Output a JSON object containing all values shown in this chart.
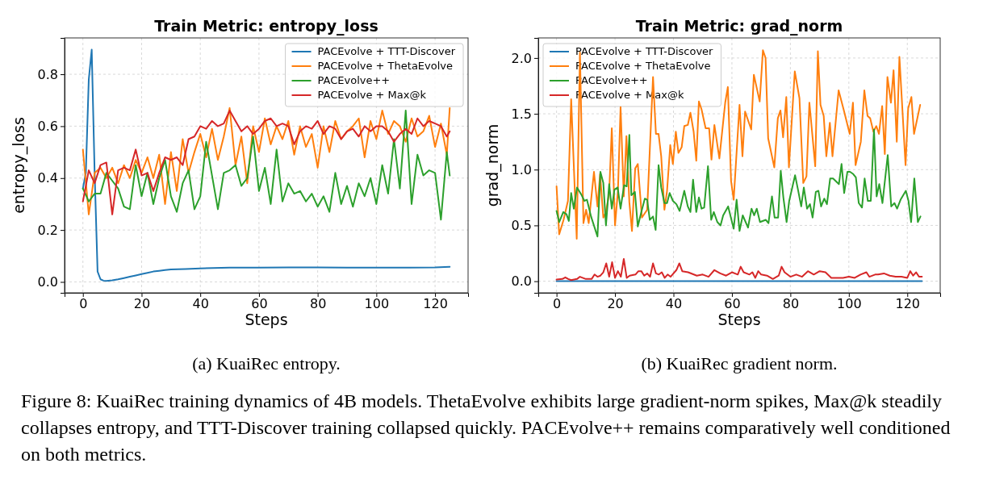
{
  "chart_data": [
    {
      "type": "line",
      "title": "Train Metric: entropy_loss",
      "xlabel": "Steps",
      "ylabel": "entropy_loss",
      "xlim": [
        -6.25,
        131.25
      ],
      "xticks": [
        0,
        20,
        40,
        60,
        80,
        100,
        120
      ],
      "ylim": [
        -0.042,
        0.94
      ],
      "yticks": [
        {
          "value": 0,
          "label": "0.0"
        },
        0.2,
        0.4,
        0.6,
        0.8
      ],
      "grid": true,
      "legend": "top right",
      "annotations": [
        "(a) KuaiRec entropy."
      ],
      "series": [
        {
          "name": "PACEvolve + TTT-Discover",
          "color": "#1f77b4",
          "x": [
            0,
            1,
            2,
            3,
            4,
            5,
            6,
            7,
            8,
            10,
            12,
            14,
            16,
            18,
            20,
            22,
            24,
            26,
            28,
            30,
            35,
            40,
            50,
            60,
            70,
            80,
            90,
            100,
            110,
            120,
            125
          ],
          "values": [
            0.36,
            0.42,
            0.78,
            0.895,
            0.42,
            0.04,
            0.01,
            0.005,
            0.004,
            0.006,
            0.01,
            0.015,
            0.02,
            0.025,
            0.03,
            0.035,
            0.04,
            0.043,
            0.046,
            0.048,
            0.05,
            0.052,
            0.055,
            0.055,
            0.056,
            0.056,
            0.055,
            0.055,
            0.055,
            0.056,
            0.058
          ]
        },
        {
          "name": "PACEvolve + ThetaEvolve",
          "color": "#ff7f0e",
          "x": [
            0,
            2,
            4,
            6,
            8,
            10,
            12,
            14,
            16,
            18,
            20,
            22,
            24,
            26,
            28,
            30,
            32,
            34,
            36,
            38,
            40,
            42,
            44,
            46,
            48,
            50,
            52,
            54,
            56,
            58,
            60,
            62,
            64,
            66,
            68,
            70,
            72,
            74,
            76,
            78,
            80,
            82,
            84,
            86,
            88,
            90,
            92,
            94,
            96,
            98,
            100,
            102,
            104,
            106,
            108,
            110,
            112,
            114,
            116,
            118,
            120,
            122,
            124,
            125
          ],
          "values": [
            0.51,
            0.26,
            0.42,
            0.44,
            0.4,
            0.44,
            0.38,
            0.45,
            0.4,
            0.47,
            0.42,
            0.48,
            0.4,
            0.49,
            0.3,
            0.5,
            0.35,
            0.55,
            0.42,
            0.5,
            0.57,
            0.48,
            0.59,
            0.47,
            0.56,
            0.67,
            0.45,
            0.56,
            0.38,
            0.6,
            0.5,
            0.63,
            0.53,
            0.6,
            0.55,
            0.62,
            0.49,
            0.6,
            0.52,
            0.57,
            0.44,
            0.6,
            0.5,
            0.62,
            0.55,
            0.58,
            0.6,
            0.63,
            0.48,
            0.62,
            0.55,
            0.66,
            0.57,
            0.62,
            0.6,
            0.54,
            0.63,
            0.56,
            0.58,
            0.64,
            0.52,
            0.61,
            0.49,
            0.67
          ]
        },
        {
          "name": "PACEvolve++",
          "color": "#2ca02c",
          "x": [
            0,
            2,
            4,
            6,
            8,
            10,
            12,
            14,
            16,
            18,
            20,
            22,
            24,
            26,
            28,
            30,
            32,
            34,
            36,
            38,
            40,
            42,
            44,
            46,
            48,
            50,
            52,
            54,
            56,
            58,
            60,
            62,
            64,
            66,
            68,
            70,
            72,
            74,
            76,
            78,
            80,
            82,
            84,
            86,
            88,
            90,
            92,
            94,
            96,
            98,
            100,
            102,
            104,
            106,
            108,
            110,
            112,
            114,
            116,
            118,
            120,
            122,
            124,
            125
          ],
          "values": [
            0.36,
            0.31,
            0.34,
            0.34,
            0.42,
            0.39,
            0.36,
            0.29,
            0.28,
            0.45,
            0.33,
            0.42,
            0.3,
            0.4,
            0.47,
            0.33,
            0.27,
            0.38,
            0.43,
            0.28,
            0.33,
            0.54,
            0.41,
            0.28,
            0.42,
            0.43,
            0.45,
            0.37,
            0.4,
            0.56,
            0.35,
            0.44,
            0.3,
            0.51,
            0.31,
            0.38,
            0.34,
            0.35,
            0.31,
            0.34,
            0.29,
            0.33,
            0.27,
            0.42,
            0.3,
            0.37,
            0.29,
            0.38,
            0.33,
            0.4,
            0.3,
            0.45,
            0.34,
            0.55,
            0.36,
            0.66,
            0.3,
            0.49,
            0.41,
            0.43,
            0.42,
            0.24,
            0.5,
            0.41
          ]
        },
        {
          "name": "PACEvolve + Max@k",
          "color": "#d62728",
          "x": [
            0,
            2,
            4,
            6,
            8,
            10,
            12,
            14,
            16,
            18,
            20,
            22,
            24,
            26,
            28,
            30,
            32,
            34,
            36,
            38,
            40,
            42,
            44,
            46,
            48,
            50,
            52,
            54,
            56,
            58,
            60,
            62,
            64,
            66,
            68,
            70,
            72,
            74,
            76,
            78,
            80,
            82,
            84,
            86,
            88,
            90,
            92,
            94,
            96,
            98,
            100,
            102,
            104,
            106,
            108,
            110,
            112,
            114,
            116,
            118,
            120,
            122,
            124,
            125
          ],
          "values": [
            0.31,
            0.43,
            0.38,
            0.45,
            0.46,
            0.26,
            0.43,
            0.44,
            0.43,
            0.51,
            0.41,
            0.42,
            0.35,
            0.42,
            0.48,
            0.47,
            0.48,
            0.45,
            0.55,
            0.56,
            0.6,
            0.59,
            0.62,
            0.6,
            0.61,
            0.66,
            0.62,
            0.58,
            0.6,
            0.57,
            0.59,
            0.62,
            0.63,
            0.6,
            0.61,
            0.6,
            0.53,
            0.58,
            0.6,
            0.59,
            0.62,
            0.57,
            0.6,
            0.59,
            0.55,
            0.58,
            0.59,
            0.56,
            0.6,
            0.58,
            0.6,
            0.6,
            0.58,
            0.54,
            0.57,
            0.59,
            0.57,
            0.63,
            0.6,
            0.62,
            0.61,
            0.6,
            0.56,
            0.58
          ]
        }
      ]
    },
    {
      "type": "line",
      "title": "Train Metric: grad_norm",
      "xlabel": "Steps",
      "ylabel": "grad_norm",
      "xlim": [
        -6.25,
        131.25
      ],
      "xticks": [
        0,
        20,
        40,
        60,
        80,
        100,
        120
      ],
      "ylim": [
        -0.104,
        2.18
      ],
      "yticks": [
        {
          "value": 0,
          "label": "0.0"
        },
        0.5,
        {
          "value": 1,
          "label": "1.0"
        },
        1.5,
        {
          "value": 2,
          "label": "2.0"
        }
      ],
      "grid": true,
      "legend": "top left",
      "annotations": [
        "(b) KuaiRec gradient norm.",
        "Figure 8: KuaiRec training dynamics of 4B models. ThetaEvolve exhibits large gradient-norm spikes, Max@k steadily collapses entropy, and TTT-Discover training collapsed quickly. PACEvolve++ remains comparatively well conditioned on both metrics."
      ],
      "series": [
        {
          "name": "PACEvolve + TTT-Discover",
          "color": "#1f77b4",
          "x": [
            0,
            125
          ],
          "values": [
            0,
            0
          ]
        },
        {
          "name": "PACEvolve + ThetaEvolve",
          "color": "#ff7f0e",
          "x": [
            0,
            0.9,
            2.4,
            3.9,
            5,
            6.9,
            8,
            9.2,
            10.1,
            11,
            12.8,
            14,
            14.9,
            16,
            16.9,
            18,
            18.9,
            20,
            21,
            21.9,
            23,
            23.9,
            24.9,
            25.8,
            26.9,
            27.8,
            29.2,
            31,
            33,
            34,
            34.9,
            35.8,
            36.9,
            37.8,
            38.9,
            39.8,
            40.8,
            41.7,
            42.8,
            43.7,
            44.9,
            45.8,
            46.9,
            47.8,
            48.7,
            49.6,
            51,
            52.2,
            53,
            54,
            55.7,
            57.7,
            58.6,
            59.7,
            60.6,
            62.6,
            63.6,
            64.5,
            66.6,
            67.5,
            69.5,
            70.6,
            71.5,
            72.4,
            74.5,
            75.7,
            76.6,
            77.5,
            78.6,
            79.5,
            81.5,
            83.1,
            84.4,
            85.5,
            86.5,
            88.5,
            89.4,
            90.3,
            91.4,
            92.3,
            93.5,
            94.4,
            96.5,
            98.3,
            100.3,
            101.4,
            102.3,
            104.1,
            105.3,
            106.4,
            107.3,
            108.4,
            109.4,
            110.3,
            111.4,
            112.3,
            113.2,
            114.4,
            115.3,
            116.4,
            117.3,
            119.4,
            120.3,
            121.4,
            122.3,
            124.4
          ],
          "values": [
            0.85,
            0.42,
            0.55,
            0.72,
            1.63,
            0.38,
            2.05,
            0.52,
            0.64,
            0.52,
            0.98,
            0.67,
            0.96,
            0.57,
            0.62,
            0.79,
            1.37,
            0.5,
            0.81,
            1.56,
            0.76,
            1.3,
            0.71,
            0.45,
            1.01,
            1.05,
            0.57,
            0.64,
            1.83,
            1.32,
            1.32,
            1.12,
            0.64,
            0.81,
            1.22,
            1.05,
            1.34,
            1.15,
            1.2,
            1.39,
            1.4,
            1.51,
            1.34,
            1.08,
            1.61,
            1.54,
            1.37,
            1.37,
            1.09,
            1.4,
            1.1,
            1.6,
            1.74,
            0.9,
            0.73,
            1.58,
            1.12,
            1.52,
            1.36,
            1.85,
            1.61,
            2.07,
            2.0,
            1.28,
            1.02,
            1.46,
            1.53,
            1.29,
            1.65,
            1.02,
            1.88,
            1.64,
            0.88,
            0.94,
            1.6,
            1.03,
            2.06,
            1.58,
            1.48,
            1.12,
            1.42,
            1.12,
            1.71,
            1.53,
            1.32,
            1.6,
            1.04,
            1.25,
            1.71,
            1.48,
            1.46,
            1.34,
            1.39,
            1.32,
            1.57,
            1.14,
            1.83,
            1.6,
            1.89,
            1.25,
            2.01,
            1.04,
            1.55,
            1.65,
            1.32,
            1.58
          ]
        },
        {
          "name": "PACEvolve++",
          "color": "#2ca02c",
          "x": [
            0,
            0.9,
            2.3,
            3.4,
            4.2,
            5,
            5.9,
            7,
            8.6,
            9.5,
            10.4,
            11.8,
            14,
            15,
            16,
            16.9,
            18,
            18.9,
            19.8,
            20.9,
            21.9,
            23.1,
            24,
            24.9,
            25.6,
            26.8,
            27.8,
            29,
            30.2,
            31,
            31.9,
            33,
            33.9,
            34.9,
            35.8,
            36.9,
            37.8,
            38.7,
            39.8,
            41,
            42.1,
            43.7,
            44.9,
            45.8,
            46.7,
            47.8,
            48.7,
            49.6,
            50.5,
            51.8,
            52.9,
            53.8,
            55,
            56.1,
            57,
            58.7,
            60.6,
            61.6,
            62.6,
            63.7,
            65.5,
            66.7,
            67.6,
            68.5,
            69.6,
            71.6,
            72.5,
            73.7,
            74.6,
            75.8,
            76.7,
            77.6,
            78.7,
            79.6,
            81.6,
            82.6,
            83.7,
            84.6,
            85.7,
            86.7,
            87.6,
            88.7,
            89.6,
            90.5,
            91.6,
            92.5,
            93.6,
            94.6,
            96.6,
            97.5,
            98.4,
            99.5,
            100.4,
            101.5,
            102.4,
            103.4,
            104.5,
            105.4,
            106.5,
            107.5,
            108.6,
            109.5,
            110.4,
            111.5,
            113.3,
            114.5,
            115.6,
            116.5,
            117.7,
            119.5,
            120.4,
            121.3,
            122.4,
            123.6,
            124.5
          ],
          "values": [
            0.63,
            0.53,
            0.62,
            0.6,
            0.54,
            0.79,
            0.65,
            0.84,
            0.77,
            0.72,
            0.73,
            0.58,
            0.4,
            0.98,
            0.88,
            0.5,
            0.87,
            0.65,
            0.82,
            0.84,
            0.65,
            0.86,
            0.85,
            1.31,
            0.77,
            0.8,
            0.49,
            0.62,
            0.74,
            0.73,
            0.55,
            0.58,
            0.46,
            1.04,
            0.84,
            0.7,
            0.7,
            0.79,
            0.72,
            0.69,
            0.63,
            0.81,
            0.67,
            0.62,
            0.91,
            0.62,
            0.75,
            0.65,
            0.66,
            1.03,
            0.55,
            0.62,
            0.53,
            0.5,
            0.59,
            0.67,
            0.47,
            0.73,
            0.45,
            0.59,
            0.48,
            0.65,
            0.59,
            0.65,
            0.53,
            0.55,
            0.52,
            0.76,
            0.57,
            0.57,
            0.99,
            0.75,
            0.53,
            0.72,
            0.95,
            0.82,
            0.67,
            0.84,
            0.65,
            0.69,
            0.57,
            0.8,
            0.81,
            0.67,
            0.74,
            0.69,
            0.92,
            0.92,
            0.87,
            1.05,
            0.79,
            0.98,
            0.98,
            0.96,
            0.93,
            0.7,
            0.66,
            0.92,
            0.72,
            0.72,
            1.36,
            0.76,
            0.87,
            0.7,
            1.13,
            0.67,
            0.7,
            0.65,
            0.73,
            0.81,
            0.72,
            0.53,
            0.92,
            0.53,
            0.58
          ]
        },
        {
          "name": "PACEvolve + Max@k",
          "color": "#d62728",
          "x": [
            0,
            2,
            3,
            4,
            5,
            7,
            8,
            10,
            12,
            13,
            14,
            15,
            16,
            17,
            18,
            19,
            20,
            21,
            22,
            23,
            24,
            25,
            27,
            28,
            29,
            30,
            31,
            32,
            33,
            34,
            35,
            36,
            37,
            38,
            39,
            41,
            42,
            43,
            45,
            48,
            50,
            52,
            54,
            56,
            58,
            60,
            62,
            63,
            64,
            66,
            67,
            68,
            69,
            70,
            72,
            74,
            76,
            77,
            78,
            80,
            82,
            84,
            86,
            88,
            90,
            92,
            94,
            96,
            98,
            100,
            102,
            104,
            106,
            107,
            109,
            110,
            112,
            114,
            116,
            118,
            120,
            121,
            122,
            123,
            124,
            125
          ],
          "values": [
            0.015,
            0.02,
            0.035,
            0.02,
            0.01,
            0.02,
            0.04,
            0.02,
            0.02,
            0.06,
            0.04,
            0.05,
            0.08,
            0.16,
            0.04,
            0.17,
            0.03,
            0.09,
            0.04,
            0.2,
            0.03,
            0.05,
            0.06,
            0.09,
            0.09,
            0.05,
            0.07,
            0.04,
            0.16,
            0.07,
            0.06,
            0.08,
            0.03,
            0.06,
            0.04,
            0.1,
            0.16,
            0.09,
            0.08,
            0.05,
            0.06,
            0.04,
            0.1,
            0.07,
            0.05,
            0.08,
            0.06,
            0.13,
            0.08,
            0.06,
            0.08,
            0.03,
            0.09,
            0.06,
            0.05,
            0.02,
            0.05,
            0.13,
            0.08,
            0.04,
            0.06,
            0.04,
            0.09,
            0.06,
            0.09,
            0.08,
            0.03,
            0.03,
            0.03,
            0.04,
            0.03,
            0.06,
            0.08,
            0.04,
            0.06,
            0.06,
            0.07,
            0.05,
            0.04,
            0.04,
            0.03,
            0.09,
            0.05,
            0.08,
            0.04,
            0.04
          ]
        }
      ]
    }
  ]
}
